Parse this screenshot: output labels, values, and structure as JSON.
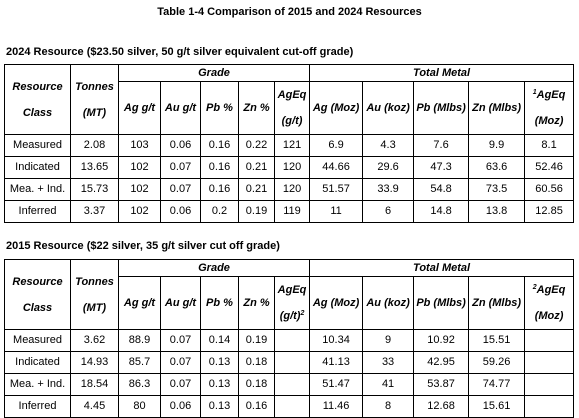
{
  "title": "Table 1-4 Comparison of 2015 and 2024 Resources",
  "tables": [
    {
      "title": "2024 Resource ($23.50 silver, 50 g/t silver equivalent cut-off grade)",
      "headers": {
        "class_line1": "Resource",
        "class_line2": "Class",
        "tonnes_line1": "Tonnes",
        "tonnes_line2": "(MT)",
        "grade_group": "Grade",
        "metal_group": "Total Metal",
        "ag_grade": "Ag g/t",
        "au_grade": "Au g/t",
        "pb_grade": "Pb %",
        "zn_grade": "Zn %",
        "ageq_grade_line1": "AgEq",
        "ageq_grade_line2": "(g/t)",
        "ageq_grade_sup": "",
        "ag_metal": "Ag (Moz)",
        "au_metal": "Au (koz)",
        "pb_metal": "Pb (Mlbs)",
        "zn_metal": "Zn (Mlbs)",
        "ageq_metal_sup": "1",
        "ageq_metal_line1": "AgEq",
        "ageq_metal_line2": "(Moz)"
      },
      "rows": [
        [
          "Measured",
          "2.08",
          "103",
          "0.06",
          "0.16",
          "0.22",
          "121",
          "6.9",
          "4.3",
          "7.6",
          "9.9",
          "8.1"
        ],
        [
          "Indicated",
          "13.65",
          "102",
          "0.07",
          "0.16",
          "0.21",
          "120",
          "44.66",
          "29.6",
          "47.3",
          "63.6",
          "52.46"
        ],
        [
          "Mea. + Ind.",
          "15.73",
          "102",
          "0.07",
          "0.16",
          "0.21",
          "120",
          "51.57",
          "33.9",
          "54.8",
          "73.5",
          "60.56"
        ],
        [
          "Inferred",
          "3.37",
          "102",
          "0.06",
          "0.2",
          "0.19",
          "119",
          "11",
          "6",
          "14.8",
          "13.8",
          "12.85"
        ]
      ]
    },
    {
      "title": "2015 Resource ($22 silver, 35 g/t silver cut off grade)",
      "headers": {
        "class_line1": "Resource",
        "class_line2": "Class",
        "tonnes_line1": "Tonnes",
        "tonnes_line2": "(MT)",
        "grade_group": "Grade",
        "metal_group": "Total Metal",
        "ag_grade": "Ag g/t",
        "au_grade": "Au g/t",
        "pb_grade": "Pb %",
        "zn_grade": "Zn %",
        "ageq_grade_line1": "AgEq",
        "ageq_grade_line2": "(g/t)",
        "ageq_grade_sup": "2",
        "ag_metal": "Ag (Moz)",
        "au_metal": "Au (koz)",
        "pb_metal": "Pb (Mlbs)",
        "zn_metal": "Zn (Mlbs)",
        "ageq_metal_sup": "2",
        "ageq_metal_line1": "AgEq",
        "ageq_metal_line2": "(Moz)"
      },
      "rows": [
        [
          "Measured",
          "3.62",
          "88.9",
          "0.07",
          "0.14",
          "0.19",
          "",
          "10.34",
          "9",
          "10.92",
          "15.51",
          ""
        ],
        [
          "Indicated",
          "14.93",
          "85.7",
          "0.07",
          "0.13",
          "0.18",
          "",
          "41.13",
          "33",
          "42.95",
          "59.26",
          ""
        ],
        [
          "Mea. + Ind.",
          "18.54",
          "86.3",
          "0.07",
          "0.13",
          "0.18",
          "",
          "51.47",
          "41",
          "53.87",
          "74.77",
          ""
        ],
        [
          "Inferred",
          "4.45",
          "80",
          "0.06",
          "0.13",
          "0.16",
          "",
          "11.46",
          "8",
          "12.68",
          "15.61",
          ""
        ]
      ]
    }
  ]
}
